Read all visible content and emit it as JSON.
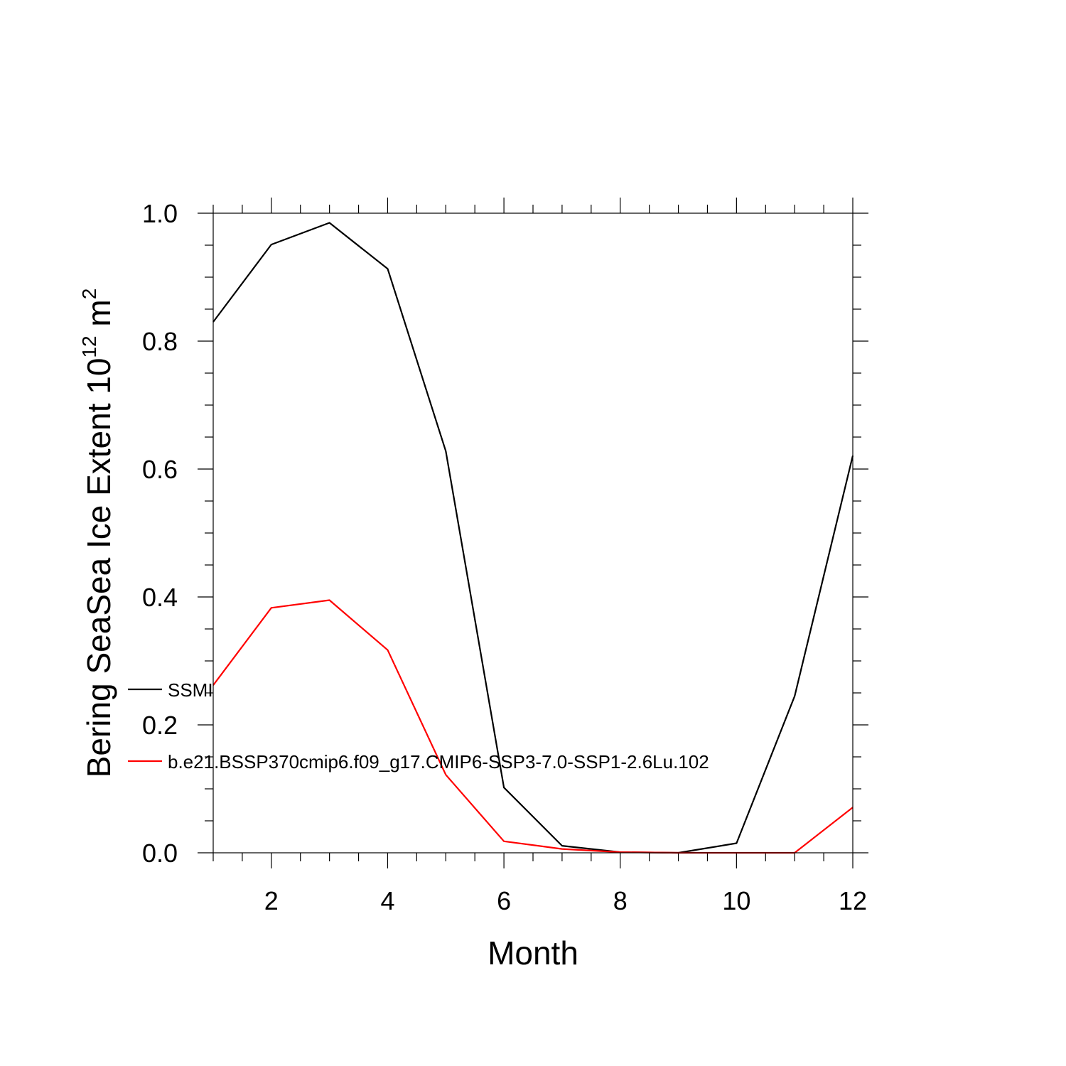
{
  "chart_data": {
    "type": "line",
    "title": "",
    "xlabel": "Month",
    "ylabel": {
      "text": "Bering SeaSea Ice Extent 10",
      "superscript_1": "12",
      "unit": " m",
      "superscript_2": "2"
    },
    "xlim": [
      1,
      12
    ],
    "ylim": [
      0.0,
      1.0
    ],
    "x_ticks": [
      2,
      4,
      6,
      8,
      10,
      12
    ],
    "x_tick_labels": [
      "2",
      "4",
      "6",
      "8",
      "10",
      "12"
    ],
    "y_ticks": [
      0.0,
      0.2,
      0.4,
      0.6,
      0.8,
      1.0
    ],
    "y_tick_labels": [
      "0.0",
      "0.2",
      "0.4",
      "0.6",
      "0.8",
      "1.0"
    ],
    "grid": false,
    "legend_position": "left, inside plot",
    "x": [
      1,
      2,
      3,
      4,
      5,
      6,
      7,
      8,
      9,
      10,
      11,
      12
    ],
    "series": [
      {
        "name": "SSMI",
        "color": "#000000",
        "values": [
          0.83,
          0.951,
          0.985,
          0.913,
          0.628,
          0.102,
          0.011,
          0.001,
          0.0,
          0.015,
          0.245,
          0.621
        ]
      },
      {
        "name": "b.e21.BSSP370cmip6.f09_g17.CMIP6-SSP3-7.0-SSP1-2.6Lu.102",
        "color": "#ff0000",
        "values": [
          0.262,
          0.383,
          0.395,
          0.317,
          0.122,
          0.018,
          0.006,
          0.001,
          0.0,
          0.0,
          0.0,
          0.071
        ]
      }
    ]
  }
}
